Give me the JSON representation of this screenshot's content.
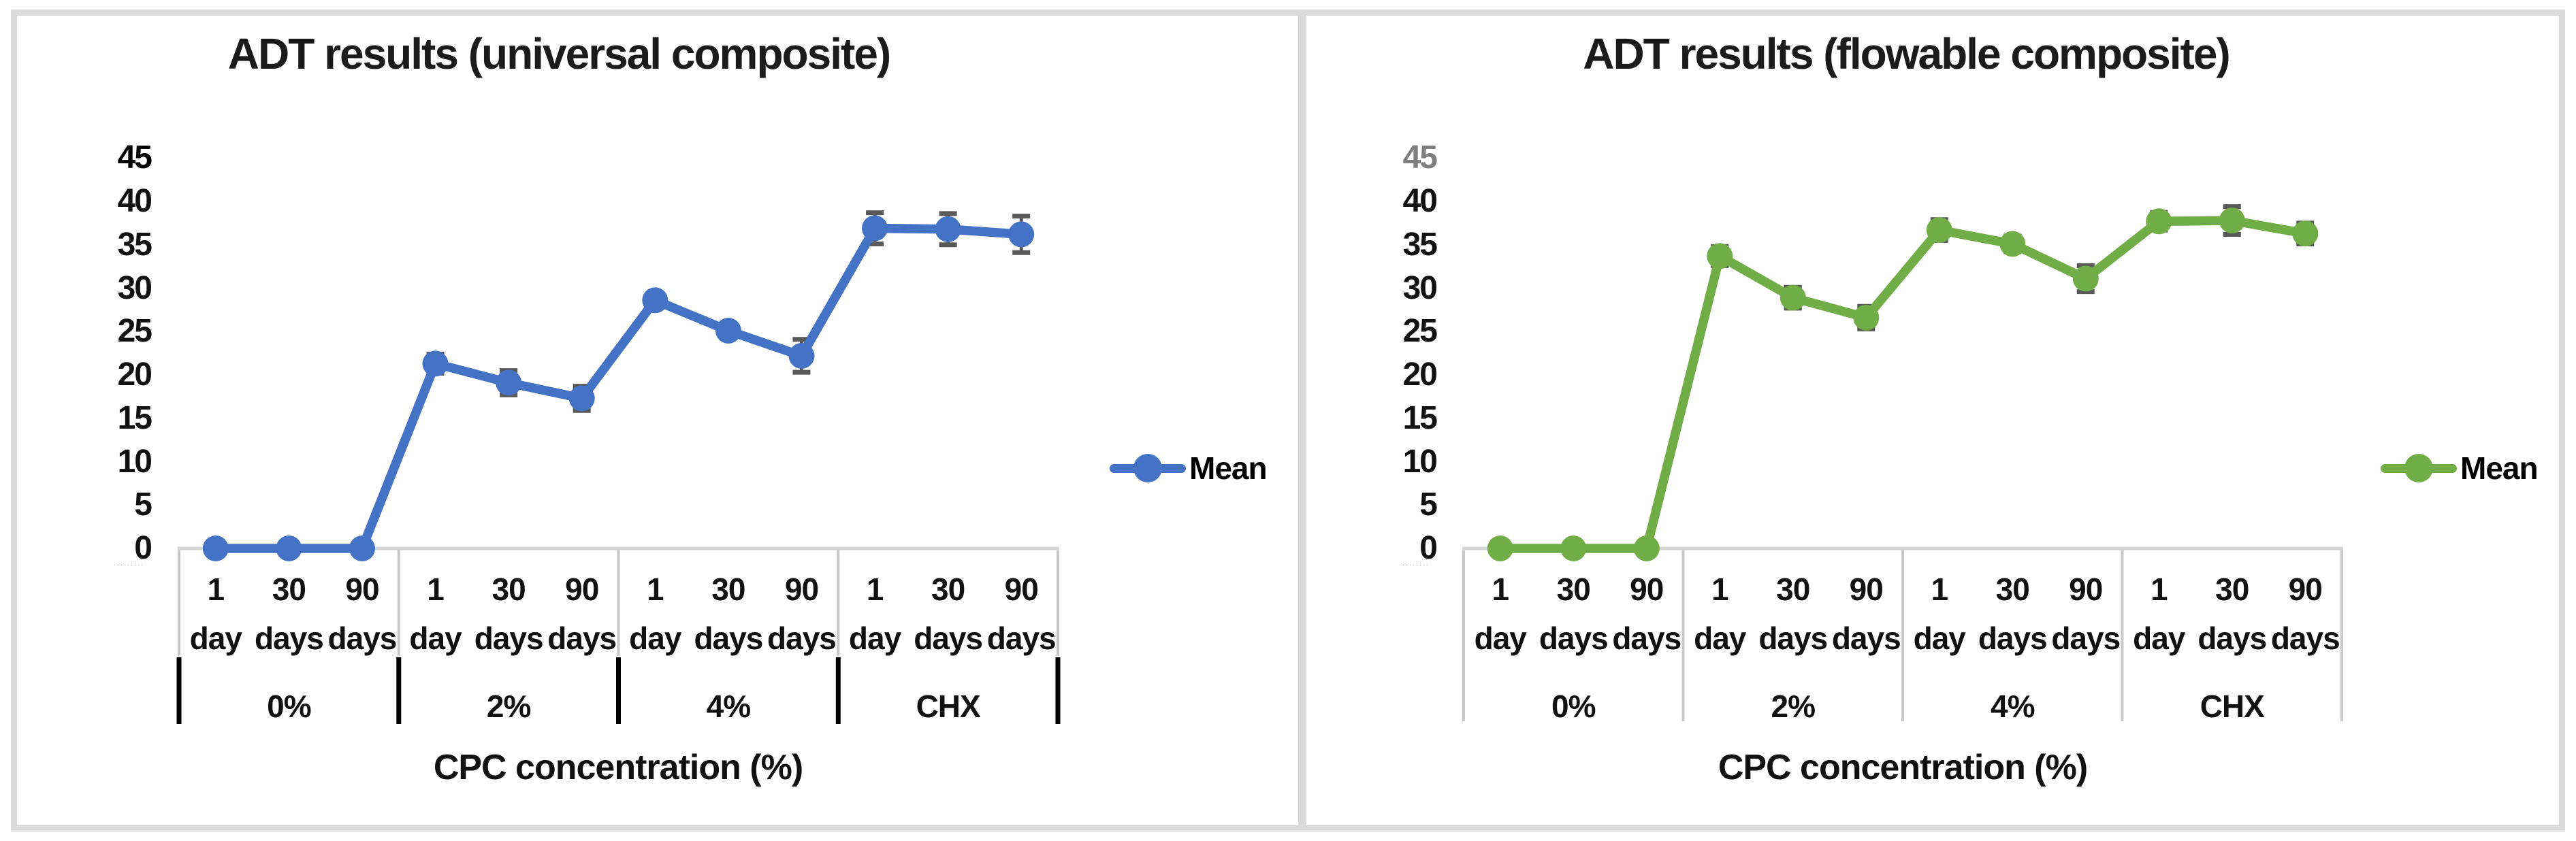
{
  "figure": {
    "background": "#FFFFFF",
    "frame_color": "#DADADA",
    "panel_count": 2
  },
  "chart_data": [
    {
      "type": "line",
      "title": "ADT results (universal composite)",
      "xlabel": "CPC concentration (%)",
      "ylabel": "",
      "legend_label": "Mean",
      "legend_position": "right-middle",
      "series_color": "#4472C4",
      "error_bar_color": "#595959",
      "axis_line_color": "#D6D6D6",
      "separator_color": "#C9C9C9",
      "group_tick_color": "#000000",
      "group_separator_style": "gray-row-plus-black-ticks",
      "first_ytick_color": "#000000",
      "grid": "off",
      "ylim": [
        0,
        45
      ],
      "y_ticks": [
        45,
        40,
        35,
        30,
        25,
        20,
        15,
        10,
        5,
        0
      ],
      "groups": [
        "0%",
        "2%",
        "4%",
        "CHX"
      ],
      "categories": [
        "1 day",
        "30 days",
        "90 days",
        "1 day",
        "30 days",
        "90 days",
        "1 day",
        "30 days",
        "90 days",
        "1 day",
        "30 days",
        "90 days"
      ],
      "series": [
        {
          "name": "Mean",
          "values": [
            0,
            0,
            0,
            21.3,
            19.1,
            17.3,
            28.6,
            25.1,
            22.2,
            36.9,
            36.8,
            36.2
          ],
          "errors": [
            0,
            0,
            0,
            1.1,
            1.4,
            1.4,
            0.7,
            0.7,
            1.9,
            1.8,
            1.8,
            2.1
          ]
        }
      ],
      "micro_artifact": "·········"
    },
    {
      "type": "line",
      "title": "ADT results (flowable composite)",
      "xlabel": "CPC concentration (%)",
      "ylabel": "",
      "legend_label": "Mean",
      "legend_position": "right-middle",
      "series_color": "#70AD47",
      "error_bar_color": "#595959",
      "axis_line_color": "#D6D6D6",
      "separator_color": "#C9C9C9",
      "group_tick_color": "#C9C9C9",
      "group_separator_style": "gray-full",
      "first_ytick_color": "#7F7F7F",
      "grid": "off",
      "ylim": [
        0,
        45
      ],
      "y_ticks": [
        45,
        40,
        35,
        30,
        25,
        20,
        15,
        10,
        5,
        0
      ],
      "groups": [
        "0%",
        "2%",
        "4%",
        "CHX"
      ],
      "categories": [
        "1 day",
        "30 days",
        "90 days",
        "1 day",
        "30 days",
        "90 days",
        "1 day",
        "30 days",
        "90 days",
        "1 day",
        "30 days",
        "90 days"
      ],
      "series": [
        {
          "name": "Mean",
          "values": [
            0,
            0,
            0,
            33.7,
            28.9,
            26.6,
            36.7,
            35.1,
            31.1,
            37.7,
            37.8,
            36.3
          ],
          "errors": [
            0,
            0,
            0,
            1.1,
            1.2,
            1.3,
            1.2,
            0.9,
            1.5,
            1.0,
            1.6,
            1.2
          ]
        }
      ],
      "micro_artifact": "·········"
    }
  ]
}
